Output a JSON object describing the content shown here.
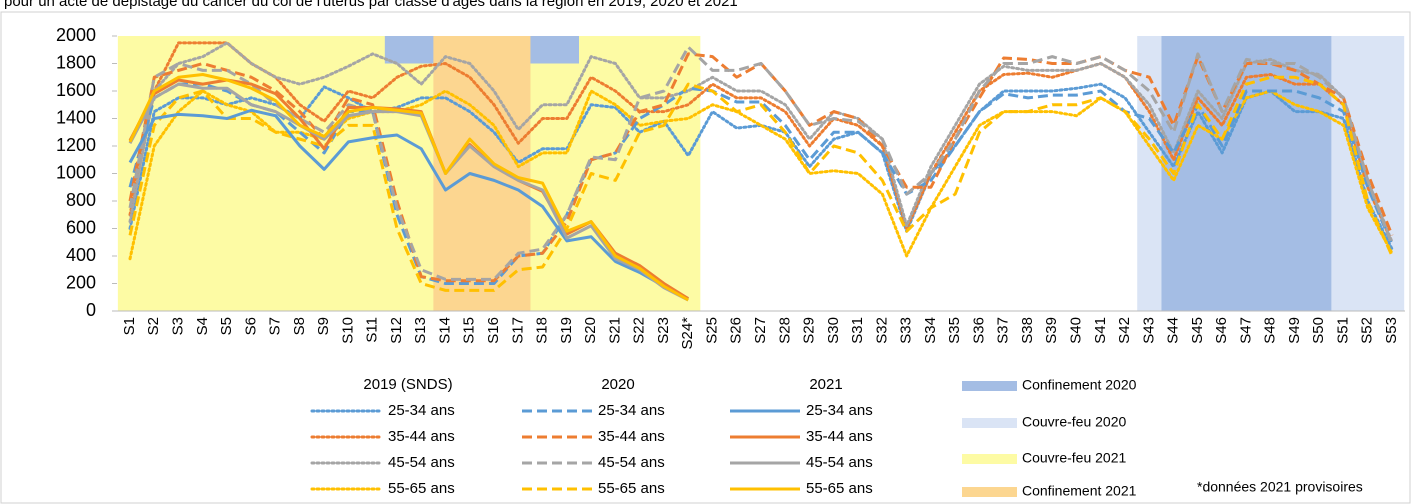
{
  "chart_data": {
    "type": "line",
    "title": "pour un acte de dépistage du cancer du col de l'utérus par classe d'âges dans la région en 2019, 2020 et 2021",
    "categories": [
      "S1",
      "S2",
      "S3",
      "S4",
      "S5",
      "S6",
      "S7",
      "S8",
      "S9",
      "S10",
      "S11",
      "S12",
      "S13",
      "S14",
      "S15",
      "S16",
      "S17",
      "S18",
      "S19",
      "S20",
      "S21",
      "S22",
      "S23",
      "S24*",
      "S25",
      "S26",
      "S27",
      "S28",
      "S29",
      "S30",
      "S31",
      "S32",
      "S33",
      "S34",
      "S35",
      "S36",
      "S37",
      "S38",
      "S39",
      "S40",
      "S41",
      "S42",
      "S43",
      "S44",
      "S45",
      "S46",
      "S47",
      "S48",
      "S49",
      "S50",
      "S51",
      "S52",
      "S53"
    ],
    "ylim": [
      0,
      2000
    ],
    "yticks": [
      0,
      200,
      400,
      600,
      800,
      1000,
      1200,
      1400,
      1600,
      1800,
      2000
    ],
    "groups": [
      {
        "name": "2019 (SNDS)",
        "style": "dotted",
        "series": [
          {
            "name": "25-34 ans",
            "color": "#5b9bd5",
            "values": [
              600,
              1450,
              1550,
              1550,
              1500,
              1550,
              1500,
              1400,
              1630,
              1550,
              1450,
              1480,
              1550,
              1550,
              1450,
              1300,
              1080,
              1180,
              1180,
              1500,
              1480,
              1300,
              1380,
              1130,
              1450,
              1330,
              1350,
              1300,
              1050,
              1250,
              1300,
              1150,
              580,
              1000,
              1200,
              1450,
              1600,
              1600,
              1600,
              1620,
              1650,
              1550,
              1300,
              1050,
              1450,
              1150,
              1550,
              1600,
              1450,
              1450,
              1400,
              800,
              450
            ]
          },
          {
            "name": "35-44 ans",
            "color": "#ed7d31",
            "values": [
              700,
              1600,
              1950,
              1950,
              1950,
              1800,
              1700,
              1500,
              1380,
              1600,
              1550,
              1700,
              1780,
              1800,
              1700,
              1500,
              1220,
              1400,
              1400,
              1700,
              1600,
              1450,
              1450,
              1500,
              1650,
              1550,
              1550,
              1450,
              1200,
              1400,
              1350,
              1200,
              600,
              1000,
              1300,
              1600,
              1720,
              1730,
              1700,
              1750,
              1800,
              1700,
              1450,
              1100,
              1550,
              1350,
              1700,
              1720,
              1650,
              1650,
              1500,
              900,
              500
            ]
          },
          {
            "name": "45-54 ans",
            "color": "#a5a5a5",
            "values": [
              650,
              1600,
              1800,
              1850,
              1950,
              1800,
              1700,
              1650,
              1700,
              1780,
              1870,
              1800,
              1650,
              1850,
              1800,
              1600,
              1320,
              1500,
              1500,
              1850,
              1800,
              1550,
              1550,
              1600,
              1700,
              1600,
              1600,
              1500,
              1250,
              1450,
              1400,
              1250,
              620,
              1050,
              1350,
              1650,
              1780,
              1750,
              1750,
              1750,
              1800,
              1700,
              1500,
              1150,
              1600,
              1400,
              1800,
              1830,
              1750,
              1720,
              1550,
              950,
              500
            ]
          },
          {
            "name": "55-65 ans",
            "color": "#ffc000",
            "values": [
              380,
              1200,
              1450,
              1600,
              1500,
              1450,
              1300,
              1300,
              1250,
              1400,
              1450,
              1450,
              1500,
              1600,
              1500,
              1350,
              1050,
              1150,
              1150,
              1600,
              1500,
              1350,
              1380,
              1400,
              1500,
              1450,
              1350,
              1250,
              1000,
              1020,
              1000,
              850,
              400,
              750,
              1050,
              1350,
              1450,
              1450,
              1450,
              1420,
              1550,
              1450,
              1200,
              950,
              1350,
              1250,
              1550,
              1600,
              1500,
              1450,
              1350,
              750,
              420
            ]
          }
        ]
      },
      {
        "name": "2020",
        "style": "dashed",
        "series": [
          {
            "name": "25-34 ans",
            "color": "#5b9bd5",
            "values": [
              900,
              1550,
              1650,
              1650,
              1600,
              1500,
              1450,
              1300,
              1150,
              1450,
              1450,
              700,
              250,
              200,
              200,
              200,
              400,
              420,
              700,
              1100,
              1150,
              1400,
              1500,
              1620,
              1600,
              1520,
              1520,
              1350,
              1100,
              1300,
              1300,
              1150,
              850,
              950,
              1200,
              1450,
              1580,
              1550,
              1570,
              1570,
              1600,
              1450,
              1400,
              1150,
              1500,
              1200,
              1600,
              1600,
              1600,
              1550,
              1450,
              900,
              480
            ]
          },
          {
            "name": "35-44 ans",
            "color": "#ed7d31",
            "values": [
              800,
              1700,
              1750,
              1800,
              1750,
              1700,
              1600,
              1450,
              1250,
              1550,
              1500,
              800,
              250,
              220,
              220,
              220,
              400,
              420,
              650,
              1100,
              1150,
              1450,
              1500,
              1870,
              1850,
              1700,
              1800,
              1600,
              1350,
              1450,
              1400,
              1200,
              900,
              900,
              1250,
              1550,
              1840,
              1830,
              1800,
              1800,
              1850,
              1750,
              1700,
              1350,
              1850,
              1450,
              1800,
              1800,
              1750,
              1650,
              1550,
              1000,
              550
            ]
          },
          {
            "name": "45-54 ans",
            "color": "#a5a5a5",
            "values": [
              750,
              1700,
              1800,
              1750,
              1750,
              1650,
              1500,
              1400,
              1300,
              1500,
              1450,
              750,
              300,
              230,
              230,
              230,
              420,
              450,
              700,
              1120,
              1100,
              1550,
              1600,
              1920,
              1750,
              1750,
              1800,
              1600,
              1350,
              1400,
              1380,
              1250,
              850,
              1000,
              1250,
              1600,
              1800,
              1800,
              1850,
              1800,
              1850,
              1750,
              1600,
              1300,
              1870,
              1450,
              1830,
              1800,
              1800,
              1700,
              1550,
              950,
              480
            ]
          },
          {
            "name": "55-65 ans",
            "color": "#ffc000",
            "values": [
              550,
              1350,
              1550,
              1600,
              1400,
              1400,
              1300,
              1250,
              1200,
              1350,
              1350,
              600,
              200,
              150,
              150,
              150,
              300,
              320,
              600,
              1000,
              950,
              1300,
              1350,
              1650,
              1600,
              1450,
              1500,
              1300,
              1000,
              1200,
              1150,
              950,
              580,
              750,
              850,
              1300,
              1450,
              1450,
              1500,
              1500,
              1550,
              1450,
              1250,
              1000,
              1500,
              1250,
              1650,
              1700,
              1700,
              1650,
              1500,
              800,
              400
            ]
          }
        ]
      },
      {
        "name": "2021",
        "style": "solid",
        "series": [
          {
            "name": "25-34 ans",
            "color": "#5b9bd5",
            "values": [
              1080,
              1400,
              1430,
              1420,
              1400,
              1460,
              1420,
              1200,
              1030,
              1230,
              1260,
              1280,
              1180,
              880,
              1000,
              950,
              880,
              760,
              510,
              540,
              360,
              280,
              180,
              90,
              null,
              null,
              null,
              null,
              null,
              null,
              null,
              null,
              null,
              null,
              null,
              null,
              null,
              null,
              null,
              null,
              null,
              null,
              null,
              null,
              null,
              null,
              null,
              null,
              null,
              null,
              null,
              null,
              null
            ]
          },
          {
            "name": "35-44 ans",
            "color": "#ed7d31",
            "values": [
              1240,
              1580,
              1680,
              1650,
              1680,
              1650,
              1580,
              1400,
              1180,
              1480,
              1480,
              1470,
              1450,
              1000,
              1210,
              1050,
              950,
              870,
              560,
              650,
              420,
              330,
              200,
              90,
              null,
              null,
              null,
              null,
              null,
              null,
              null,
              null,
              null,
              null,
              null,
              null,
              null,
              null,
              null,
              null,
              null,
              null,
              null,
              null,
              null,
              null,
              null,
              null,
              null,
              null,
              null,
              null,
              null
            ]
          },
          {
            "name": "45-54 ans",
            "color": "#a5a5a5",
            "values": [
              1220,
              1550,
              1650,
              1620,
              1620,
              1500,
              1450,
              1350,
              1250,
              1420,
              1450,
              1450,
              1420,
              1000,
              1200,
              1050,
              950,
              880,
              530,
              620,
              380,
              300,
              170,
              80,
              null,
              null,
              null,
              null,
              null,
              null,
              null,
              null,
              null,
              null,
              null,
              null,
              null,
              null,
              null,
              null,
              null,
              null,
              null,
              null,
              null,
              null,
              null,
              null,
              null,
              null,
              null,
              null,
              null
            ]
          },
          {
            "name": "55-65 ans",
            "color": "#ffc000",
            "values": [
              1230,
              1600,
              1700,
              1720,
              1680,
              1620,
              1530,
              1350,
              1270,
              1450,
              1480,
              1460,
              1440,
              1000,
              1250,
              1070,
              970,
              930,
              580,
              650,
              400,
              310,
              180,
              80,
              null,
              null,
              null,
              null,
              null,
              null,
              null,
              null,
              null,
              null,
              null,
              null,
              null,
              null,
              null,
              null,
              null,
              null,
              null,
              null,
              null,
              null,
              null,
              null,
              null,
              null,
              null,
              null,
              null
            ]
          }
        ]
      }
    ],
    "bands": [
      {
        "name": "Confinement 2020",
        "color": "#a4bde4",
        "ranges": [
          {
            "from": "S12",
            "to": "S19",
            "ymin": 1800
          },
          {
            "from": "S44",
            "to": "S50"
          }
        ]
      },
      {
        "name": "Couvre-feu 2020",
        "color": "#dae4f5",
        "ranges": [
          {
            "from": "S43",
            "to": "S53"
          }
        ]
      },
      {
        "name": "Couvre-feu 2021",
        "color": "#fdfba4",
        "ranges": [
          {
            "from": "S1",
            "to": "S24*"
          }
        ]
      },
      {
        "name": "Confinement 2021",
        "color": "#fcd690",
        "ranges": [
          {
            "from": "S14",
            "to": "S17"
          }
        ]
      }
    ],
    "footnote": "*données 2021 provisoires"
  }
}
